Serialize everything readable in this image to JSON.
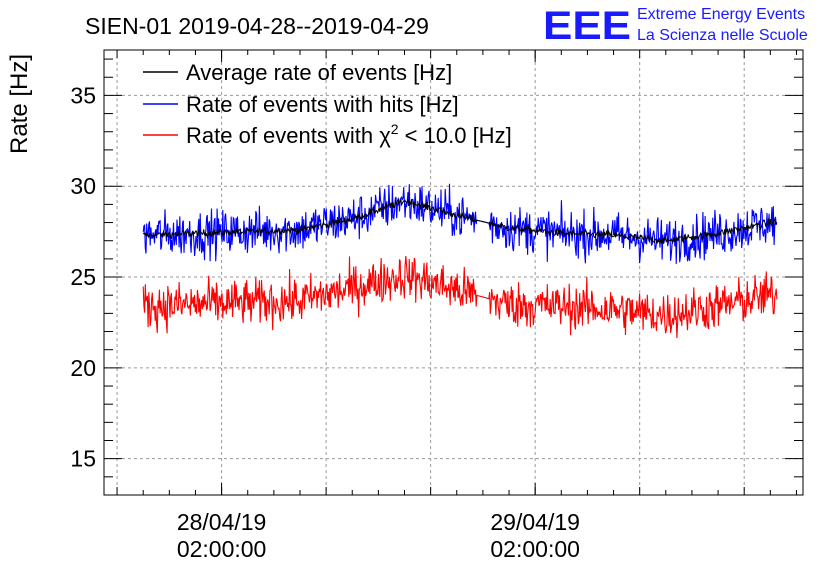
{
  "chart_data": {
    "type": "line",
    "title": "SIEN-01 2019-04-28--2019-04-29",
    "xlabel": "",
    "ylabel": "Rate [Hz]",
    "ylim": [
      13,
      37.5
    ],
    "yticks": [
      15,
      20,
      25,
      30,
      35
    ],
    "xticks": [
      {
        "line1": "28/04/19",
        "line2": "02:00:00"
      },
      {
        "line1": "29/04/19",
        "line2": "02:00:00"
      }
    ],
    "grid": true,
    "legend_position": "top-left",
    "series": [
      {
        "name": "Average rate of events [Hz]",
        "color": "#000000",
        "x": [
          "2019-04-27 20:00",
          "2019-04-28 00:00",
          "2019-04-28 04:00",
          "2019-04-28 08:00",
          "2019-04-28 12:00",
          "2019-04-28 16:00",
          "2019-04-28 20:00",
          "2019-04-29 00:00",
          "2019-04-29 04:00",
          "2019-04-29 08:00",
          "2019-04-29 12:00",
          "2019-04-29 16:00",
          "2019-04-29 20:00"
        ],
        "values": [
          27.3,
          27.4,
          27.5,
          27.6,
          28.2,
          29.2,
          28.4,
          27.7,
          27.4,
          27.3,
          27.0,
          27.4,
          28.0
        ]
      },
      {
        "name": "Rate of events with hits [Hz]",
        "color": "#0000ff",
        "x": [
          "2019-04-27 20:00",
          "2019-04-28 00:00",
          "2019-04-28 04:00",
          "2019-04-28 08:00",
          "2019-04-28 12:00",
          "2019-04-28 16:00",
          "2019-04-28 20:00",
          "2019-04-29 00:00",
          "2019-04-29 04:00",
          "2019-04-29 08:00",
          "2019-04-29 12:00",
          "2019-04-29 16:00",
          "2019-04-29 20:00"
        ],
        "values": [
          27.3,
          27.4,
          27.5,
          27.6,
          28.2,
          29.2,
          28.4,
          27.7,
          27.4,
          27.3,
          27.0,
          27.4,
          28.0
        ]
      },
      {
        "name": "Rate of events with χ² < 10.0 [Hz]",
        "color": "#ff0000",
        "x": [
          "2019-04-27 20:00",
          "2019-04-28 00:00",
          "2019-04-28 04:00",
          "2019-04-28 08:00",
          "2019-04-28 12:00",
          "2019-04-28 16:00",
          "2019-04-28 20:00",
          "2019-04-29 00:00",
          "2019-04-29 04:00",
          "2019-04-29 08:00",
          "2019-04-29 12:00",
          "2019-04-29 16:00",
          "2019-04-29 20:00"
        ],
        "values": [
          23.4,
          23.5,
          23.6,
          23.7,
          24.4,
          25.1,
          24.3,
          23.5,
          23.4,
          23.2,
          22.9,
          23.4,
          24.0
        ]
      }
    ]
  },
  "legend": {
    "average": "Average rate of events [Hz]",
    "hits": "Rate of events with hits [Hz]",
    "chi_prefix": "Rate of events with χ",
    "chi_sup": "2",
    "chi_suffix": " < 10.0 [Hz]"
  },
  "logo": {
    "mark": "EEE",
    "line1": "Extreme Energy Events",
    "line2": "La Scienza nelle Scuole",
    "color": "#1a1aff"
  }
}
